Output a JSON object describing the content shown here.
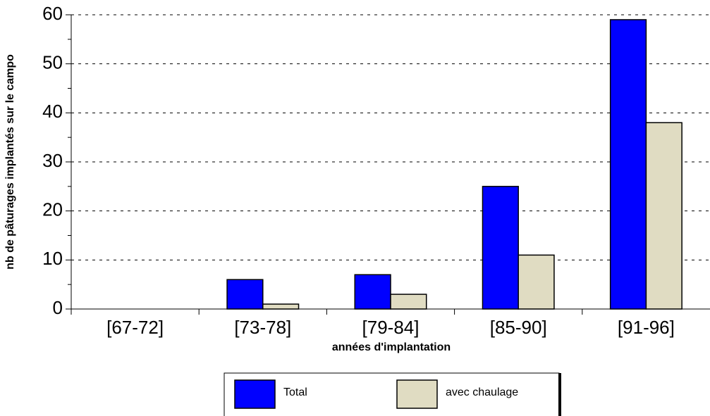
{
  "chart_data": {
    "type": "bar",
    "xlabel": "années d'implantation",
    "ylabel": "nb de pâturages implantés sur le campo",
    "categories": [
      "[67-72]",
      "[73-78]",
      "[79-84]",
      "[85-90]",
      "[91-96]"
    ],
    "series": [
      {
        "name": "Total",
        "color": "#0000ff",
        "values": [
          0,
          6,
          7,
          25,
          59
        ]
      },
      {
        "name": "avec chaulage",
        "color": "#e0dcc2",
        "values": [
          0,
          1,
          3,
          11,
          38
        ]
      }
    ],
    "ylim": [
      0,
      60
    ],
    "yticks": [
      0,
      10,
      20,
      30,
      40,
      50,
      60
    ],
    "minor_yticks": [
      5,
      15,
      25,
      35,
      45,
      55
    ],
    "grid": true,
    "legend": "bottom"
  }
}
